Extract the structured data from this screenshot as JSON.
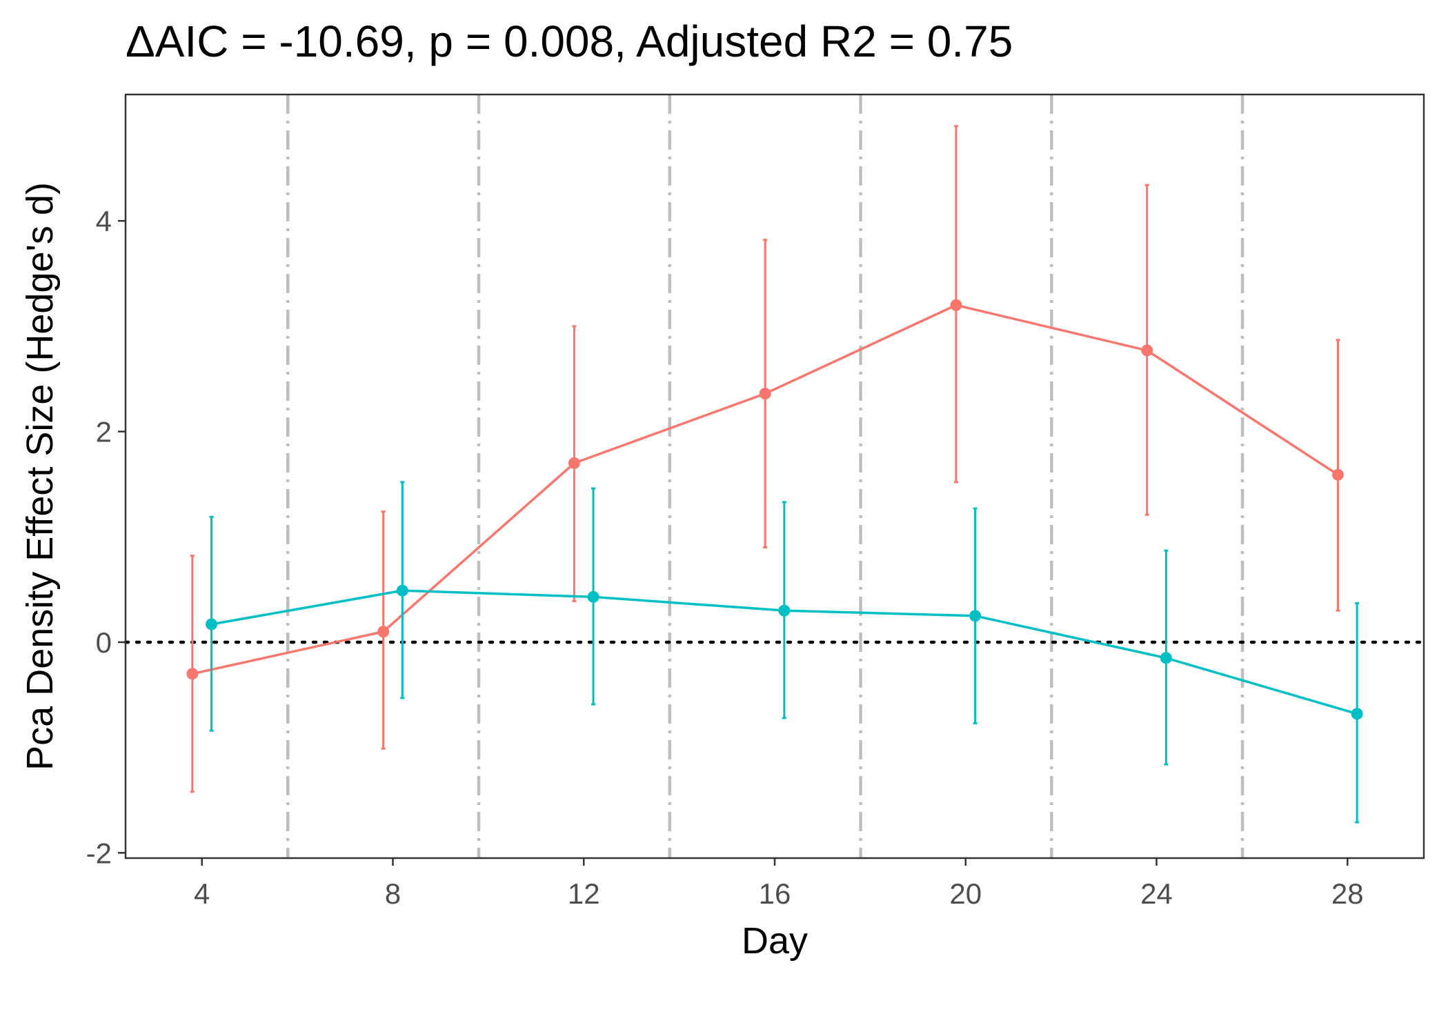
{
  "chart_data": {
    "type": "line",
    "title": "ΔAIC = -10.69, p = 0.008, Adjusted R2 = 0.75",
    "xlabel": "Day",
    "ylabel": "Pca Density Effect Size (Hedge's d)",
    "xlim": [
      2.4,
      29.6
    ],
    "ylim": [
      -2.05,
      5.2
    ],
    "x_ticks": [
      4,
      8,
      12,
      16,
      20,
      24,
      28
    ],
    "x_tick_labels": [
      "4",
      "8",
      "12",
      "16",
      "20",
      "24",
      "28"
    ],
    "y_ticks": [
      -2,
      0,
      2,
      4
    ],
    "y_tick_labels": [
      "-2",
      "0",
      "2",
      "4"
    ],
    "grid": false,
    "legend": "none",
    "reference_hline": 0,
    "vertical_divider_lines": [
      5.8,
      9.8,
      13.8,
      17.8,
      21.8,
      25.8
    ],
    "series": [
      {
        "color": "#F8766D",
        "x": [
          3.8,
          7.8,
          11.8,
          15.8,
          19.8,
          23.8,
          27.8
        ],
        "y": [
          -0.3,
          0.1,
          1.7,
          2.36,
          3.2,
          2.77,
          1.59
        ],
        "ci_low": [
          -1.42,
          -1.01,
          0.39,
          0.9,
          1.52,
          1.21,
          0.3
        ],
        "ci_high": [
          0.82,
          1.24,
          3.0,
          3.82,
          4.9,
          4.34,
          2.87
        ]
      },
      {
        "color": "#00BFC4",
        "x": [
          4.2,
          8.2,
          12.2,
          16.2,
          20.2,
          24.2,
          28.2
        ],
        "y": [
          0.17,
          0.49,
          0.43,
          0.3,
          0.25,
          -0.15,
          -0.68
        ],
        "ci_low": [
          -0.84,
          -0.53,
          -0.59,
          -0.72,
          -0.77,
          -1.16,
          -1.71
        ],
        "ci_high": [
          1.19,
          1.52,
          1.46,
          1.33,
          1.27,
          0.87,
          0.37
        ]
      }
    ]
  }
}
